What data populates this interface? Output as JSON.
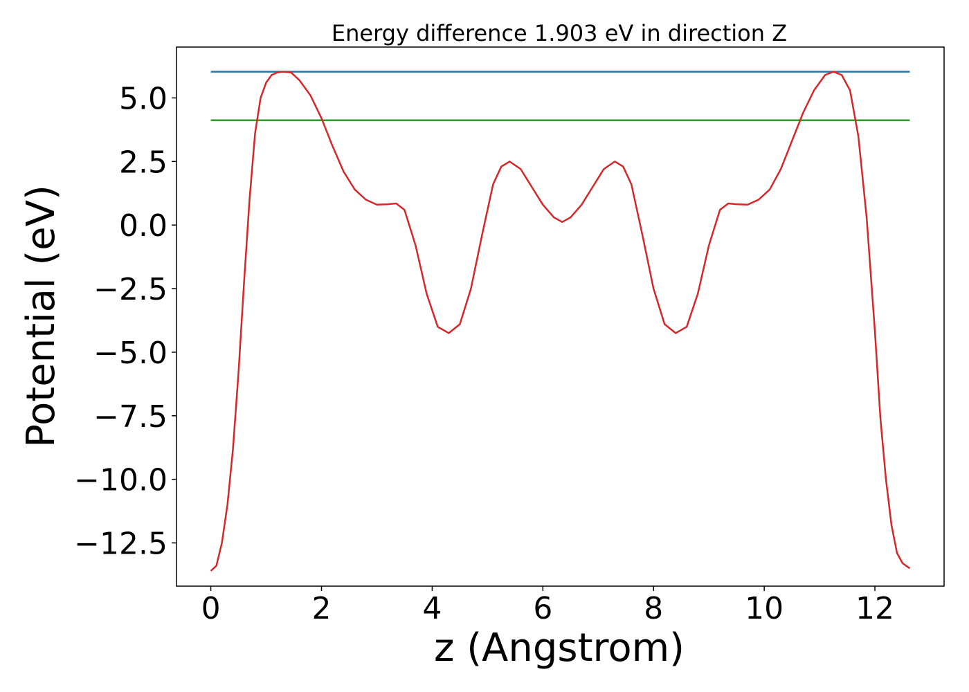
{
  "chart_data": {
    "type": "line",
    "title": "Energy difference 1.903 eV in direction Z",
    "xlabel": "z (Angstrom)",
    "ylabel": "Potential (eV)",
    "xlim": [
      -0.62,
      13.25
    ],
    "ylim": [
      -14.2,
      7.0
    ],
    "xticks": [
      0,
      2,
      4,
      6,
      8,
      10,
      12
    ],
    "xtick_labels": [
      "0",
      "2",
      "4",
      "6",
      "8",
      "10",
      "12"
    ],
    "yticks": [
      5.0,
      2.5,
      0.0,
      -2.5,
      -5.0,
      -7.5,
      -10.0,
      -12.5
    ],
    "ytick_labels": [
      "5.0",
      "2.5",
      "0.0",
      "−2.5",
      "−5.0",
      "−7.5",
      "−10.0",
      "−12.5"
    ],
    "grid": false,
    "series": [
      {
        "color": "#1f77b4",
        "x": [
          0.0,
          12.63
        ],
        "y": [
          6.03,
          6.03
        ]
      },
      {
        "color": "#2ca02c",
        "x": [
          0.0,
          12.63
        ],
        "y": [
          4.12,
          4.12
        ]
      },
      {
        "color": "#d62728",
        "x": [
          0.0,
          0.1,
          0.2,
          0.3,
          0.4,
          0.5,
          0.6,
          0.7,
          0.8,
          0.9,
          1.0,
          1.1,
          1.2,
          1.3,
          1.45,
          1.6,
          1.8,
          2.0,
          2.2,
          2.4,
          2.6,
          2.8,
          3.0,
          3.2,
          3.35,
          3.5,
          3.7,
          3.9,
          4.1,
          4.3,
          4.5,
          4.7,
          4.9,
          5.1,
          5.25,
          5.4,
          5.6,
          5.8,
          6.0,
          6.2,
          6.35,
          6.5,
          6.7,
          6.9,
          7.1,
          7.3,
          7.45,
          7.6,
          7.8,
          8.0,
          8.2,
          8.4,
          8.6,
          8.8,
          9.0,
          9.2,
          9.35,
          9.5,
          9.7,
          9.9,
          10.1,
          10.3,
          10.5,
          10.7,
          10.9,
          11.1,
          11.25,
          11.4,
          11.55,
          11.7,
          11.85,
          12.0,
          12.1,
          12.2,
          12.3,
          12.4,
          12.5,
          12.63
        ],
        "y": [
          -13.6,
          -13.4,
          -12.5,
          -11.0,
          -8.8,
          -5.8,
          -2.3,
          1.0,
          3.6,
          5.0,
          5.6,
          5.9,
          6.0,
          6.03,
          6.0,
          5.7,
          5.1,
          4.2,
          3.1,
          2.1,
          1.4,
          1.0,
          0.8,
          0.82,
          0.85,
          0.6,
          -0.8,
          -2.7,
          -4.0,
          -4.25,
          -3.9,
          -2.5,
          -0.4,
          1.6,
          2.3,
          2.5,
          2.2,
          1.5,
          0.8,
          0.3,
          0.12,
          0.3,
          0.8,
          1.5,
          2.2,
          2.5,
          2.3,
          1.6,
          -0.4,
          -2.5,
          -3.9,
          -4.25,
          -4.0,
          -2.7,
          -0.8,
          0.6,
          0.85,
          0.82,
          0.8,
          1.0,
          1.4,
          2.2,
          3.3,
          4.4,
          5.3,
          5.9,
          6.03,
          5.9,
          5.3,
          3.5,
          0.3,
          -4.2,
          -7.6,
          -10.0,
          -11.8,
          -12.9,
          -13.3,
          -13.5
        ]
      }
    ]
  }
}
